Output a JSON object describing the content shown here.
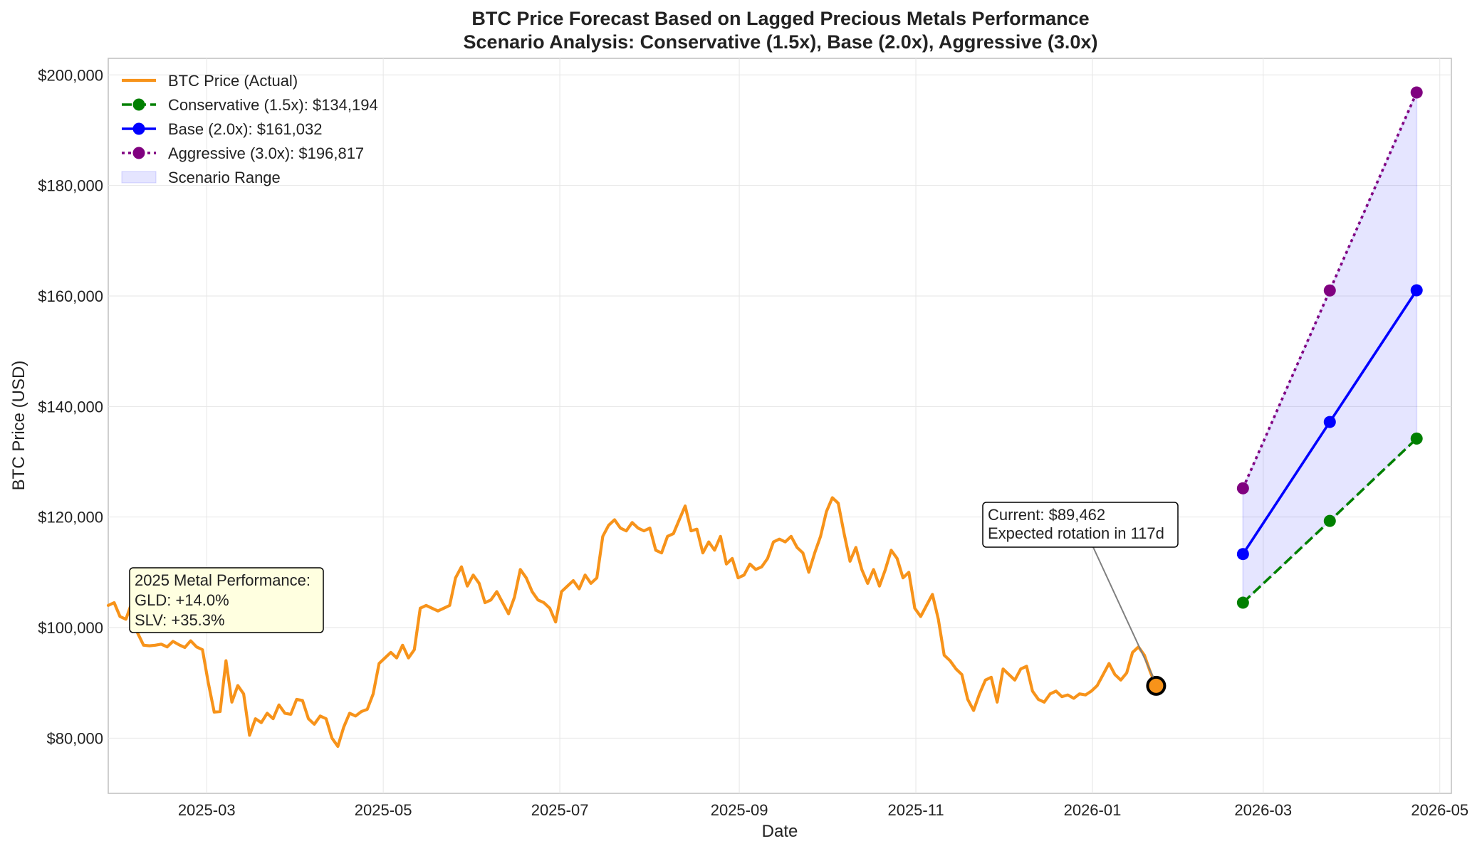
{
  "chart_data": {
    "type": "line",
    "title": "BTC Price Forecast Based on Lagged Precious Metals Performance",
    "subtitle": "Scenario Analysis: Conservative (1.5x), Base (2.0x), Aggressive (3.0x)",
    "xlabel": "Date",
    "ylabel": "BTC Price (USD)",
    "ylim": [
      70000,
      203000
    ],
    "xlim": [
      "2025-01-26",
      "2026-05-05"
    ],
    "grid": true,
    "x_ticks": [
      "2025-03",
      "2025-05",
      "2025-07",
      "2025-09",
      "2025-11",
      "2026-01",
      "2026-03",
      "2026-05"
    ],
    "y_ticks": [
      "$80,000",
      "$100,000",
      "$120,000",
      "$140,000",
      "$160,000",
      "$180,000",
      "$200,000"
    ],
    "legend": {
      "placement": "top-left",
      "entries": [
        "BTC Price (Actual)",
        "Conservative (1.5x): $134,194",
        "Base (2.0x): $161,032",
        "Aggressive (3.0x): $196,817",
        "Scenario Range"
      ]
    },
    "actual": {
      "name": "BTC Price (Actual)",
      "color": "#f7931a",
      "x_start": "2025-01-26",
      "x_end": "2026-01-23",
      "values": [
        104000,
        104500,
        102000,
        101500,
        104500,
        99000,
        96800,
        96700,
        96800,
        97000,
        96500,
        97500,
        96900,
        96400,
        97600,
        96500,
        96000,
        90000,
        84700,
        84800,
        94000,
        86500,
        89500,
        88000,
        80500,
        83500,
        82800,
        84500,
        83500,
        86000,
        84500,
        84300,
        87000,
        86800,
        83500,
        82500,
        84000,
        83500,
        80000,
        78500,
        82000,
        84500,
        84000,
        84800,
        85200,
        88000,
        93500,
        94500,
        95500,
        94500,
        96800,
        94500,
        96000,
        103500,
        104000,
        103500,
        103000,
        103500,
        104000,
        109000,
        111000,
        107500,
        109500,
        108000,
        104500,
        105000,
        106500,
        104500,
        102500,
        105500,
        110500,
        109000,
        106500,
        105000,
        104500,
        103500,
        101000,
        106500,
        107500,
        108500,
        107000,
        109500,
        108000,
        109000,
        116500,
        118500,
        119500,
        118000,
        117500,
        119000,
        118000,
        117500,
        118000,
        114000,
        113500,
        116500,
        117000,
        119500,
        122000,
        117500,
        117800,
        113500,
        115500,
        114000,
        116500,
        111500,
        112500,
        109000,
        109500,
        111500,
        110500,
        111000,
        112500,
        115500,
        116000,
        115500,
        116500,
        114500,
        113500,
        110000,
        113500,
        116500,
        121000,
        123500,
        122500,
        117000,
        112000,
        114500,
        110500,
        108000,
        110500,
        107500,
        110500,
        114000,
        112500,
        109000,
        110000,
        103500,
        102000,
        104000,
        106000,
        101500,
        95000,
        94000,
        92500,
        91500,
        87000,
        85000,
        88000,
        90500,
        91000,
        86500,
        92500,
        91500,
        90500,
        92500,
        93000,
        88500,
        87000,
        86500,
        88000,
        88500,
        87500,
        87800,
        87200,
        88000,
        87800,
        88500,
        89500,
        91500,
        93500,
        91500,
        90500,
        91800,
        95500,
        96500,
        95000,
        92000,
        89462
      ]
    },
    "current": {
      "date": "2026-01-23",
      "value": 89462,
      "annotation": [
        "Current: $89,462",
        "Expected rotation in 117d"
      ]
    },
    "series": [
      {
        "name": "Conservative (1.5x)",
        "color": "#008000",
        "style": "dashed",
        "x": [
          "2026-02-22",
          "2026-03-24",
          "2026-04-23"
        ],
        "values": [
          104500,
          119300,
          134194
        ]
      },
      {
        "name": "Base (2.0x)",
        "color": "#0000ff",
        "style": "solid",
        "x": [
          "2026-02-22",
          "2026-03-24",
          "2026-04-23"
        ],
        "values": [
          113300,
          137200,
          161032
        ]
      },
      {
        "name": "Aggressive (3.0x)",
        "color": "#800080",
        "style": "dotted",
        "x": [
          "2026-02-22",
          "2026-03-24",
          "2026-04-23"
        ],
        "values": [
          125200,
          161000,
          196817
        ]
      }
    ],
    "scenario_range": {
      "name": "Scenario Range",
      "color": "#0000ff",
      "x": [
        "2026-02-22",
        "2026-04-23"
      ]
    },
    "metal_box": {
      "lines": [
        "2025 Metal Performance:",
        "GLD: +14.0%",
        "SLV: +35.3%"
      ]
    }
  }
}
